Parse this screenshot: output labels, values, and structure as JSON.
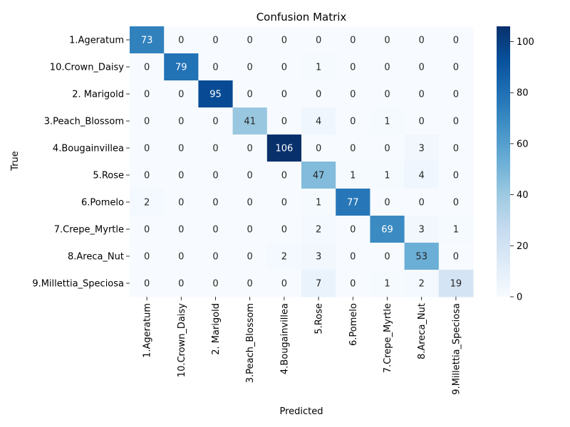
{
  "chart_data": {
    "type": "heatmap",
    "title": "Confusion Matrix",
    "xlabel": "Predicted",
    "ylabel": "True",
    "labels": [
      "1.Ageratum",
      "10.Crown_Daisy",
      "2. Marigold",
      "3.Peach_Blossom",
      "4.Bougainvillea",
      "5.Rose",
      "6.Pomelo",
      "7.Crepe_Myrtle",
      "8.Areca_Nut",
      "9.Millettia_Speciosa"
    ],
    "matrix": [
      [
        73,
        0,
        0,
        0,
        0,
        0,
        0,
        0,
        0,
        0
      ],
      [
        0,
        79,
        0,
        0,
        0,
        1,
        0,
        0,
        0,
        0
      ],
      [
        0,
        0,
        95,
        0,
        0,
        0,
        0,
        0,
        0,
        0
      ],
      [
        0,
        0,
        0,
        41,
        0,
        4,
        0,
        1,
        0,
        0
      ],
      [
        0,
        0,
        0,
        0,
        106,
        0,
        0,
        0,
        3,
        0
      ],
      [
        0,
        0,
        0,
        0,
        0,
        47,
        1,
        1,
        4,
        0
      ],
      [
        2,
        0,
        0,
        0,
        0,
        1,
        77,
        0,
        0,
        0
      ],
      [
        0,
        0,
        0,
        0,
        0,
        2,
        0,
        69,
        3,
        1
      ],
      [
        0,
        0,
        0,
        0,
        2,
        3,
        0,
        0,
        53,
        0
      ],
      [
        0,
        0,
        0,
        0,
        0,
        7,
        0,
        1,
        2,
        19
      ]
    ],
    "colorbar": {
      "min": 0,
      "max": 106,
      "ticks": [
        0,
        20,
        40,
        60,
        80,
        100
      ],
      "colormap": "Blues"
    }
  }
}
